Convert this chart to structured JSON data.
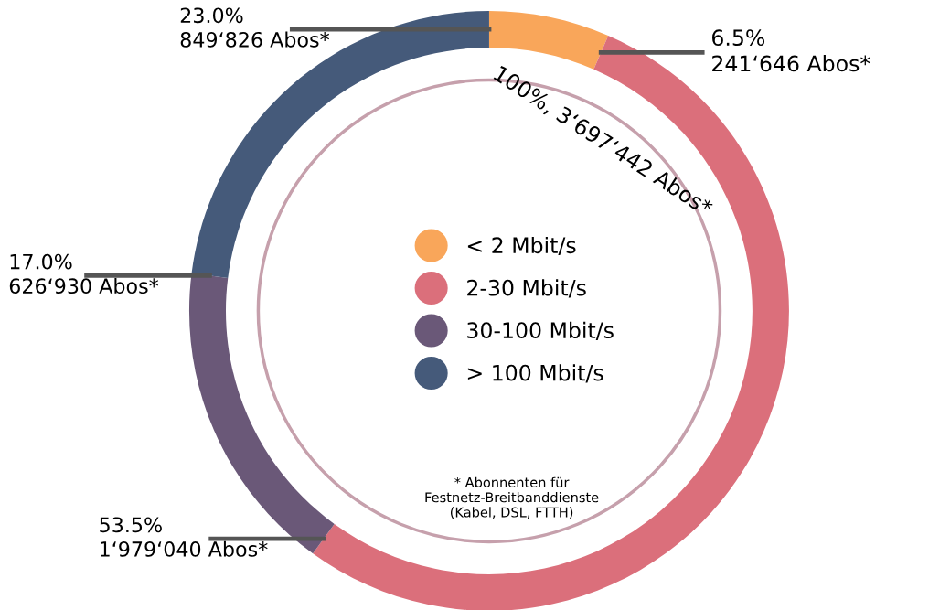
{
  "chart_data": {
    "type": "donut",
    "categories": [
      "< 2 Mbit/s",
      "2-30 Mbit/s",
      "30-100 Mbit/s",
      "> 100 Mbit/s"
    ],
    "values": [
      6.5,
      53.5,
      17.0,
      23.0
    ],
    "colors": [
      "#f9a65a",
      "#db6f7b",
      "#6a5878",
      "#455a7a"
    ],
    "value_labels": [
      "6.5%\n241‘646 Abos*",
      "53.5%\n1‘979‘040 Abos*",
      "17.0%\n626‘930 Abos*",
      "23.0%\n849‘826 Abos*"
    ],
    "annotations": [
      "100%, 3‘697‘442 Abos*",
      "* Abonnenten für\nFestnetz-Breitbanddienste\n(Kabel, DSL, FTTH)"
    ],
    "legend": "center"
  }
}
